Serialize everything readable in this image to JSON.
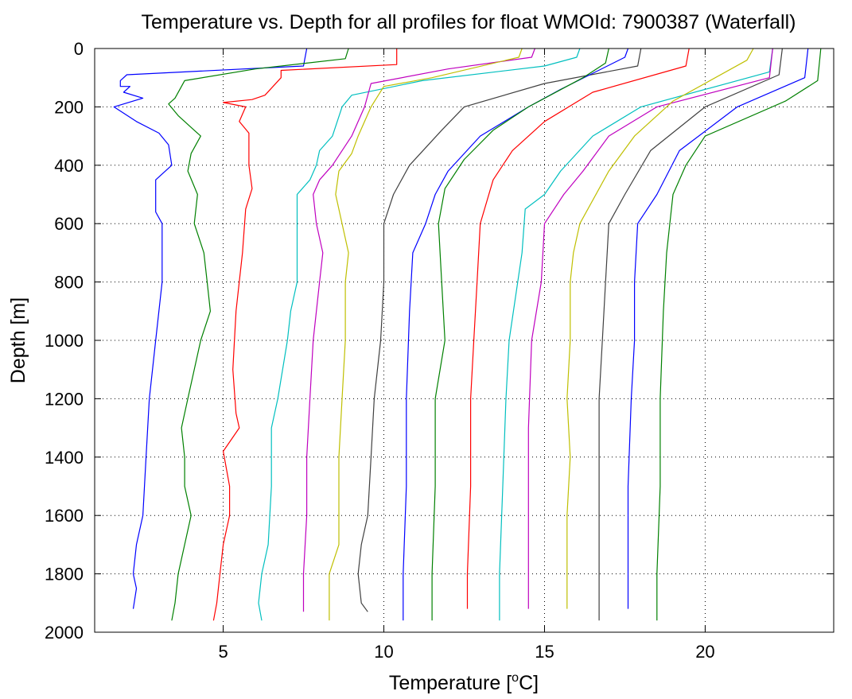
{
  "chart_data": {
    "type": "line",
    "title": "Temperature vs. Depth for all profiles for float WMOId: 7900387 (Waterfall)",
    "xlabel_main": "Temperature [",
    "xlabel_sup": "o",
    "xlabel_end": "C]",
    "ylabel": "Depth [m]",
    "xlim": [
      1,
      24
    ],
    "ylim": [
      0,
      2000
    ],
    "y_reversed": true,
    "grid": true,
    "xticks": [
      5,
      10,
      15,
      20
    ],
    "yticks": [
      0,
      200,
      400,
      600,
      800,
      1000,
      1200,
      1400,
      1600,
      1800,
      2000
    ],
    "series": [
      {
        "color": "#0000ff",
        "points": [
          [
            7.6,
            0
          ],
          [
            7.5,
            60
          ],
          [
            2.0,
            90
          ],
          [
            1.8,
            110
          ],
          [
            1.8,
            130
          ],
          [
            2.1,
            130
          ],
          [
            1.9,
            150
          ],
          [
            2.5,
            170
          ],
          [
            1.6,
            200
          ],
          [
            2.3,
            250
          ],
          [
            3.0,
            290
          ],
          [
            3.3,
            330
          ],
          [
            3.4,
            400
          ],
          [
            2.9,
            450
          ],
          [
            2.9,
            560
          ],
          [
            3.1,
            600
          ],
          [
            3.1,
            800
          ],
          [
            2.9,
            1000
          ],
          [
            2.7,
            1200
          ],
          [
            2.6,
            1400
          ],
          [
            2.5,
            1600
          ],
          [
            2.3,
            1700
          ],
          [
            2.2,
            1800
          ],
          [
            2.3,
            1850
          ],
          [
            2.2,
            1920
          ]
        ]
      },
      {
        "color": "#008000",
        "points": [
          [
            8.9,
            0
          ],
          [
            8.8,
            35
          ],
          [
            6.0,
            70
          ],
          [
            3.8,
            110
          ],
          [
            3.5,
            170
          ],
          [
            3.3,
            190
          ],
          [
            3.6,
            230
          ],
          [
            4.1,
            280
          ],
          [
            4.3,
            300
          ],
          [
            4.0,
            360
          ],
          [
            3.9,
            420
          ],
          [
            4.2,
            500
          ],
          [
            4.1,
            600
          ],
          [
            4.4,
            700
          ],
          [
            4.5,
            800
          ],
          [
            4.6,
            900
          ],
          [
            4.3,
            1000
          ],
          [
            3.9,
            1200
          ],
          [
            3.7,
            1300
          ],
          [
            3.8,
            1400
          ],
          [
            3.8,
            1500
          ],
          [
            4.0,
            1600
          ],
          [
            3.8,
            1700
          ],
          [
            3.6,
            1800
          ],
          [
            3.5,
            1900
          ],
          [
            3.4,
            1960
          ]
        ]
      },
      {
        "color": "#ff0000",
        "points": [
          [
            10.4,
            0
          ],
          [
            10.4,
            55
          ],
          [
            6.8,
            75
          ],
          [
            6.8,
            100
          ],
          [
            6.3,
            160
          ],
          [
            5.9,
            175
          ],
          [
            5.0,
            185
          ],
          [
            5.7,
            200
          ],
          [
            5.5,
            250
          ],
          [
            5.8,
            290
          ],
          [
            5.8,
            400
          ],
          [
            5.9,
            480
          ],
          [
            5.7,
            550
          ],
          [
            5.6,
            700
          ],
          [
            5.4,
            900
          ],
          [
            5.3,
            1100
          ],
          [
            5.4,
            1250
          ],
          [
            5.5,
            1300
          ],
          [
            5.0,
            1380
          ],
          [
            5.2,
            1500
          ],
          [
            5.2,
            1600
          ],
          [
            5.0,
            1700
          ],
          [
            4.9,
            1800
          ],
          [
            4.8,
            1900
          ],
          [
            4.7,
            1960
          ]
        ]
      },
      {
        "color": "#00bfbf",
        "points": [
          [
            16.1,
            0
          ],
          [
            16.0,
            30
          ],
          [
            15.0,
            60
          ],
          [
            11.2,
            110
          ],
          [
            9.0,
            160
          ],
          [
            8.7,
            200
          ],
          [
            8.4,
            300
          ],
          [
            8.0,
            350
          ],
          [
            7.9,
            400
          ],
          [
            7.7,
            450
          ],
          [
            7.3,
            500
          ],
          [
            7.3,
            600
          ],
          [
            7.3,
            700
          ],
          [
            7.3,
            800
          ],
          [
            7.1,
            900
          ],
          [
            7.0,
            1000
          ],
          [
            6.7,
            1200
          ],
          [
            6.5,
            1300
          ],
          [
            6.5,
            1500
          ],
          [
            6.4,
            1700
          ],
          [
            6.2,
            1800
          ],
          [
            6.1,
            1900
          ],
          [
            6.2,
            1960
          ]
        ]
      },
      {
        "color": "#bf00bf",
        "points": [
          [
            14.7,
            0
          ],
          [
            14.6,
            30
          ],
          [
            12.0,
            70
          ],
          [
            9.6,
            120
          ],
          [
            9.4,
            200
          ],
          [
            9.0,
            300
          ],
          [
            8.4,
            400
          ],
          [
            8.0,
            450
          ],
          [
            7.8,
            500
          ],
          [
            7.9,
            600
          ],
          [
            8.1,
            700
          ],
          [
            8.0,
            800
          ],
          [
            7.8,
            1000
          ],
          [
            7.7,
            1200
          ],
          [
            7.6,
            1400
          ],
          [
            7.6,
            1600
          ],
          [
            7.5,
            1800
          ],
          [
            7.5,
            1930
          ]
        ]
      },
      {
        "color": "#bfbf00",
        "points": [
          [
            14.3,
            0
          ],
          [
            14.2,
            30
          ],
          [
            11.5,
            100
          ],
          [
            10.0,
            130
          ],
          [
            9.6,
            200
          ],
          [
            9.2,
            300
          ],
          [
            9.0,
            360
          ],
          [
            8.6,
            420
          ],
          [
            8.5,
            500
          ],
          [
            8.7,
            600
          ],
          [
            8.9,
            700
          ],
          [
            8.8,
            800
          ],
          [
            8.8,
            1000
          ],
          [
            8.7,
            1200
          ],
          [
            8.6,
            1400
          ],
          [
            8.6,
            1700
          ],
          [
            8.3,
            1800
          ],
          [
            8.3,
            1960
          ]
        ]
      },
      {
        "color": "#404040",
        "points": [
          [
            18.0,
            0
          ],
          [
            17.9,
            60
          ],
          [
            15.0,
            120
          ],
          [
            12.5,
            200
          ],
          [
            11.8,
            280
          ],
          [
            10.8,
            400
          ],
          [
            10.3,
            500
          ],
          [
            10.0,
            600
          ],
          [
            10.0,
            800
          ],
          [
            9.9,
            1000
          ],
          [
            9.7,
            1200
          ],
          [
            9.6,
            1400
          ],
          [
            9.5,
            1600
          ],
          [
            9.3,
            1700
          ],
          [
            9.2,
            1800
          ],
          [
            9.3,
            1900
          ],
          [
            9.5,
            1930
          ]
        ]
      },
      {
        "color": "#0000ff",
        "points": [
          [
            17.6,
            0
          ],
          [
            17.5,
            30
          ],
          [
            15.5,
            140
          ],
          [
            14.5,
            200
          ],
          [
            13.0,
            300
          ],
          [
            12.0,
            420
          ],
          [
            11.6,
            500
          ],
          [
            11.3,
            600
          ],
          [
            10.9,
            700
          ],
          [
            10.8,
            900
          ],
          [
            10.7,
            1200
          ],
          [
            10.7,
            1500
          ],
          [
            10.6,
            1800
          ],
          [
            10.6,
            1960
          ]
        ]
      },
      {
        "color": "#008000",
        "points": [
          [
            17.0,
            0
          ],
          [
            16.9,
            50
          ],
          [
            16.2,
            100
          ],
          [
            14.5,
            200
          ],
          [
            13.4,
            280
          ],
          [
            12.5,
            380
          ],
          [
            11.9,
            480
          ],
          [
            11.7,
            600
          ],
          [
            11.8,
            800
          ],
          [
            11.9,
            1000
          ],
          [
            11.6,
            1200
          ],
          [
            11.6,
            1500
          ],
          [
            11.5,
            1800
          ],
          [
            11.5,
            1960
          ]
        ]
      },
      {
        "color": "#ff0000",
        "points": [
          [
            19.5,
            0
          ],
          [
            19.4,
            60
          ],
          [
            16.5,
            150
          ],
          [
            15.0,
            250
          ],
          [
            14.0,
            350
          ],
          [
            13.4,
            450
          ],
          [
            13.0,
            600
          ],
          [
            12.9,
            800
          ],
          [
            12.8,
            1000
          ],
          [
            12.7,
            1200
          ],
          [
            12.7,
            1500
          ],
          [
            12.6,
            1800
          ],
          [
            12.6,
            1920
          ]
        ]
      },
      {
        "color": "#00bfbf",
        "points": [
          [
            22.1,
            0
          ],
          [
            22.0,
            80
          ],
          [
            18.0,
            200
          ],
          [
            16.5,
            300
          ],
          [
            15.5,
            420
          ],
          [
            15.0,
            500
          ],
          [
            14.4,
            550
          ],
          [
            14.3,
            700
          ],
          [
            14.1,
            850
          ],
          [
            13.9,
            1000
          ],
          [
            13.8,
            1200
          ],
          [
            13.7,
            1500
          ],
          [
            13.6,
            1800
          ],
          [
            13.6,
            1960
          ]
        ]
      },
      {
        "color": "#bf00bf",
        "points": [
          [
            22.1,
            0
          ],
          [
            22.0,
            100
          ],
          [
            18.5,
            200
          ],
          [
            17.0,
            300
          ],
          [
            16.2,
            420
          ],
          [
            15.6,
            500
          ],
          [
            15.0,
            600
          ],
          [
            14.9,
            800
          ],
          [
            14.6,
            1000
          ],
          [
            14.5,
            1300
          ],
          [
            14.5,
            1600
          ],
          [
            14.5,
            1800
          ],
          [
            14.5,
            1920
          ]
        ]
      },
      {
        "color": "#bfbf00",
        "points": [
          [
            21.5,
            0
          ],
          [
            21.3,
            40
          ],
          [
            19.0,
            180
          ],
          [
            17.8,
            300
          ],
          [
            17.0,
            420
          ],
          [
            16.5,
            520
          ],
          [
            16.1,
            600
          ],
          [
            15.9,
            700
          ],
          [
            15.8,
            800
          ],
          [
            15.8,
            1000
          ],
          [
            15.7,
            1200
          ],
          [
            15.8,
            1400
          ],
          [
            15.7,
            1600
          ],
          [
            15.7,
            1800
          ],
          [
            15.7,
            1920
          ]
        ]
      },
      {
        "color": "#404040",
        "points": [
          [
            22.4,
            0
          ],
          [
            22.3,
            90
          ],
          [
            20.0,
            200
          ],
          [
            18.3,
            350
          ],
          [
            17.5,
            500
          ],
          [
            17.0,
            600
          ],
          [
            16.9,
            800
          ],
          [
            16.8,
            1000
          ],
          [
            16.7,
            1200
          ],
          [
            16.7,
            1500
          ],
          [
            16.7,
            1800
          ],
          [
            16.7,
            1960
          ]
        ]
      },
      {
        "color": "#0000ff",
        "points": [
          [
            23.2,
            0
          ],
          [
            23.1,
            100
          ],
          [
            21.0,
            200
          ],
          [
            19.2,
            350
          ],
          [
            18.5,
            500
          ],
          [
            17.9,
            600
          ],
          [
            17.8,
            800
          ],
          [
            17.8,
            1000
          ],
          [
            17.7,
            1200
          ],
          [
            17.6,
            1500
          ],
          [
            17.6,
            1800
          ],
          [
            17.6,
            1920
          ]
        ]
      },
      {
        "color": "#008000",
        "points": [
          [
            23.6,
            0
          ],
          [
            23.5,
            110
          ],
          [
            22.5,
            180
          ],
          [
            20.0,
            300
          ],
          [
            19.4,
            400
          ],
          [
            19.0,
            500
          ],
          [
            18.9,
            600
          ],
          [
            18.8,
            700
          ],
          [
            18.7,
            900
          ],
          [
            18.6,
            1200
          ],
          [
            18.6,
            1500
          ],
          [
            18.5,
            1800
          ],
          [
            18.5,
            1960
          ]
        ]
      }
    ]
  }
}
